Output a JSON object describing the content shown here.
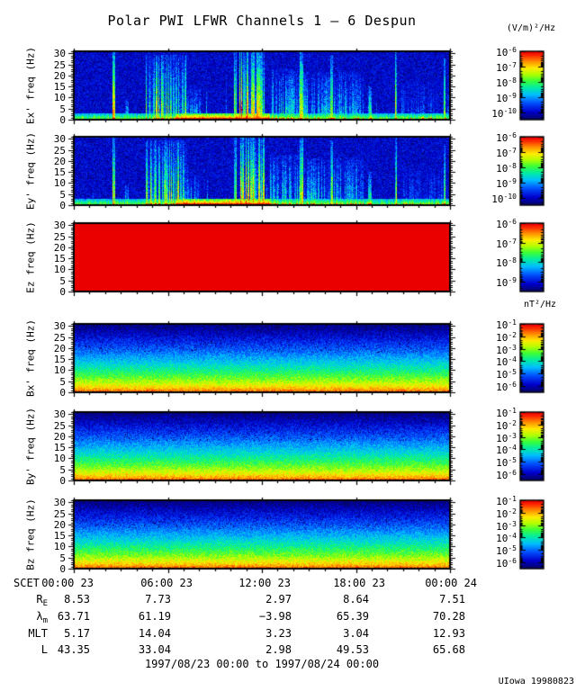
{
  "credit": "UIowa 19980823",
  "caption": "1997/08/23 00:00 to 1997/08/24 00:00",
  "units_electric": "(V/m)²/Hz",
  "units_magnetic": "nT²/Hz",
  "ephemeris_rows": [
    {
      "base": "R",
      "sub": "E",
      "values": [
        "8.53",
        "7.73",
        "2.97",
        "8.64",
        "7.51"
      ]
    },
    {
      "base": "λ",
      "sub": "m",
      "values": [
        "63.71",
        "61.19",
        "−3.98",
        "65.39",
        "70.28"
      ]
    },
    {
      "base": "MLT",
      "sub": "",
      "values": [
        "5.17",
        "14.04",
        "3.23",
        "3.04",
        "12.93"
      ]
    },
    {
      "base": "L",
      "sub": "",
      "values": [
        "43.35",
        "33.04",
        "2.98",
        "49.53",
        "65.68"
      ]
    }
  ],
  "chart_data": {
    "type": "heatmap",
    "title": "Polar PWI LFWR Channels 1 — 6 Despun",
    "subtitle": "six stacked frequency-time spectrograms, rainbow intensity colormap",
    "x_axis": {
      "label": "SCET",
      "ticks": [
        "00:00 23",
        "06:00 23",
        "12:00 23",
        "18:00 23",
        "00:00 24"
      ],
      "range": [
        "1997/08/23 00:00",
        "1997/08/24 00:00"
      ],
      "major_tick_hours": 6,
      "minor_tick_hours": 1
    },
    "y_axis": {
      "label": "freq (Hz)",
      "ticks": [
        30,
        25,
        20,
        15,
        10,
        5,
        0
      ],
      "range_hz": [
        0,
        31
      ]
    },
    "legend_position": "right colorbars, one per panel",
    "grid": false,
    "colormap_stops": [
      [
        0.0,
        [
          6,
          6,
          90
        ]
      ],
      [
        0.12,
        [
          0,
          0,
          205
        ]
      ],
      [
        0.25,
        [
          0,
          80,
          255
        ]
      ],
      [
        0.37,
        [
          0,
          190,
          255
        ]
      ],
      [
        0.47,
        [
          0,
          235,
          170
        ]
      ],
      [
        0.57,
        [
          55,
          255,
          60
        ]
      ],
      [
        0.67,
        [
          180,
          255,
          0
        ]
      ],
      [
        0.76,
        [
          255,
          235,
          0
        ]
      ],
      [
        0.86,
        [
          255,
          140,
          0
        ]
      ],
      [
        0.94,
        [
          255,
          45,
          0
        ]
      ],
      [
        1.0,
        [
          235,
          0,
          0
        ]
      ]
    ],
    "panels": [
      {
        "id": "ex",
        "ylabel": "Ex' freq (Hz)",
        "kind": "electric",
        "seed": 11,
        "colorbar_units": "(V/m)²/Hz",
        "colorbar_exponents": [
          -6,
          -7,
          -8,
          -9,
          -10
        ],
        "description": "dark-blue background, low-frequency yellow/red band, bursty broadband events mid-day",
        "band_hot": [
          0.27,
          0.52
        ],
        "events": [
          [
            0.102,
            0.108,
            0.95,
            1.0,
            0
          ],
          [
            0.135,
            0.145,
            0.5,
            0.3,
            0
          ],
          [
            0.19,
            0.3,
            0.8,
            0.95,
            1
          ],
          [
            0.3,
            0.335,
            0.45,
            0.45,
            1
          ],
          [
            0.425,
            0.432,
            0.9,
            1.0,
            0
          ],
          [
            0.44,
            0.505,
            1.0,
            1.0,
            1
          ],
          [
            0.52,
            0.6,
            0.55,
            0.75,
            1
          ],
          [
            0.6,
            0.608,
            0.85,
            1.0,
            0
          ],
          [
            0.608,
            0.77,
            0.5,
            0.7,
            1
          ],
          [
            0.68,
            0.687,
            0.8,
            0.95,
            0
          ],
          [
            0.782,
            0.79,
            0.6,
            0.5,
            0
          ],
          [
            0.852,
            0.858,
            0.9,
            1.0,
            0
          ],
          [
            0.87,
            1.0,
            0.3,
            0.55,
            1
          ],
          [
            0.982,
            0.988,
            0.85,
            0.9,
            0
          ]
        ]
      },
      {
        "id": "ey",
        "ylabel": "Ey' freq (Hz)",
        "kind": "electric",
        "seed": 22,
        "colorbar_units": "(V/m)²/Hz",
        "colorbar_exponents": [
          -6,
          -7,
          -8,
          -9,
          -10
        ],
        "description": "same event pattern as Ex'",
        "band_hot": [
          0.27,
          0.52
        ],
        "events": [
          [
            0.102,
            0.108,
            0.95,
            1.0,
            0
          ],
          [
            0.135,
            0.145,
            0.5,
            0.3,
            0
          ],
          [
            0.19,
            0.3,
            0.8,
            0.95,
            1
          ],
          [
            0.3,
            0.335,
            0.45,
            0.45,
            1
          ],
          [
            0.425,
            0.432,
            0.9,
            1.0,
            0
          ],
          [
            0.44,
            0.505,
            1.0,
            1.0,
            1
          ],
          [
            0.52,
            0.6,
            0.55,
            0.75,
            1
          ],
          [
            0.6,
            0.608,
            0.85,
            1.0,
            0
          ],
          [
            0.608,
            0.77,
            0.5,
            0.7,
            1
          ],
          [
            0.68,
            0.687,
            0.8,
            0.95,
            0
          ],
          [
            0.782,
            0.79,
            0.6,
            0.5,
            0
          ],
          [
            0.852,
            0.858,
            0.9,
            1.0,
            0
          ],
          [
            0.87,
            1.0,
            0.3,
            0.55,
            1
          ],
          [
            0.982,
            0.988,
            0.85,
            0.9,
            0
          ]
        ]
      },
      {
        "id": "ez",
        "ylabel": "Ez freq (Hz)",
        "kind": "saturated",
        "seed": 3,
        "colorbar_units": "(V/m)²/Hz",
        "colorbar_exponents": [
          -6,
          -7,
          -8,
          -9
        ],
        "description": "fully saturated solid red panel",
        "fill_value": 1.0
      },
      {
        "id": "bx",
        "ylabel": "Bx' freq (Hz)",
        "kind": "magnetic",
        "seed": 33,
        "colorbar_units": "nT²/Hz",
        "colorbar_exponents": [
          -1,
          -2,
          -3,
          -4,
          -5,
          -6
        ],
        "description": "power-law spectrum: red at 0 Hz grading through yellow/green/cyan to dark blue at 30 Hz"
      },
      {
        "id": "by",
        "ylabel": "By' freq (Hz)",
        "kind": "magnetic",
        "seed": 44,
        "colorbar_units": "nT²/Hz",
        "colorbar_exponents": [
          -1,
          -2,
          -3,
          -4,
          -5,
          -6
        ],
        "description": "same falloff as Bx'"
      },
      {
        "id": "bz",
        "ylabel": "Bz freq (Hz)",
        "kind": "magnetic",
        "seed": 55,
        "colorbar_units": "nT²/Hz",
        "colorbar_exponents": [
          -1,
          -2,
          -3,
          -4,
          -5,
          -6
        ],
        "description": "same falloff as Bx'"
      }
    ]
  }
}
